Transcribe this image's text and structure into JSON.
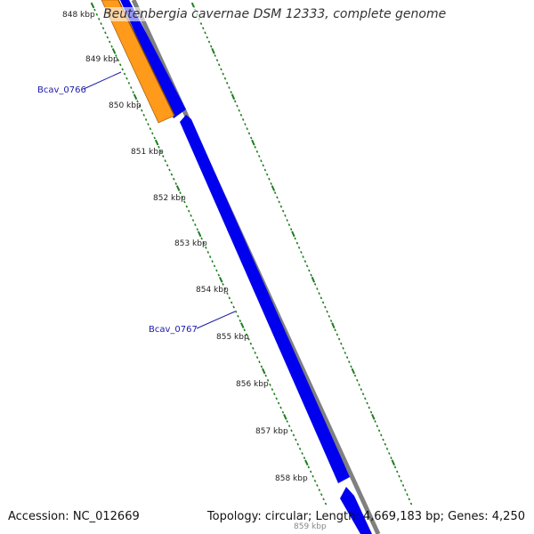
{
  "title": "Beutenbergia cavernae DSM 12333, complete genome",
  "ruler": {
    "labels": [
      "848 kbp",
      "849 kbp",
      "850 kbp",
      "851 kbp",
      "852 kbp",
      "853 kbp",
      "854 kbp",
      "855 kbp",
      "856 kbp",
      "857 kbp",
      "858 kbp",
      "859 kbp"
    ]
  },
  "genes": [
    {
      "id": "Bcav_0766",
      "label": "Bcav_0766",
      "color": "#ff9a1a"
    },
    {
      "id": "Bcav_0767",
      "label": "Bcav_0767",
      "color": "#0000ee"
    }
  ],
  "colors": {
    "forward_track": "#0000ee",
    "backbone": "#808080",
    "tick_marks": "#1e7d1e",
    "gene_label": "#1a1aa8"
  },
  "footer": {
    "accession": "Accession: NC_012669",
    "summary": "Topology: circular; Length: 4,669,183 bp; Genes: 4,250"
  }
}
